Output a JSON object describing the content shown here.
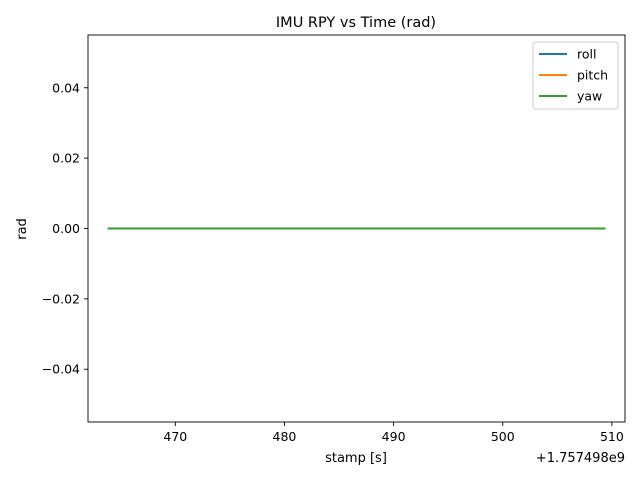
{
  "chart_data": {
    "type": "line",
    "title": "IMU RPY vs Time (rad)",
    "xlabel": "stamp [s]",
    "ylabel": "rad",
    "x_offset_label": "+1.757498e9",
    "xlim": [
      462.0,
      511.2
    ],
    "ylim": [
      -0.055,
      0.055
    ],
    "xticks": [
      470,
      480,
      490,
      500,
      510
    ],
    "yticks": [
      -0.04,
      -0.02,
      0.0,
      0.02,
      0.04
    ],
    "ytick_labels": [
      "−0.04",
      "−0.02",
      "0.00",
      "0.02",
      "0.04"
    ],
    "grid": false,
    "legend_position": "top-right",
    "series": [
      {
        "name": "roll",
        "color": "#1f77b4",
        "x": [
          463.8,
          509.4
        ],
        "y": [
          0.0,
          0.0
        ]
      },
      {
        "name": "pitch",
        "color": "#ff7f0e",
        "x": [
          463.8,
          509.4
        ],
        "y": [
          0.0,
          0.0
        ]
      },
      {
        "name": "yaw",
        "color": "#2ca02c",
        "x": [
          463.8,
          509.4
        ],
        "y": [
          0.0,
          0.0
        ]
      }
    ]
  }
}
